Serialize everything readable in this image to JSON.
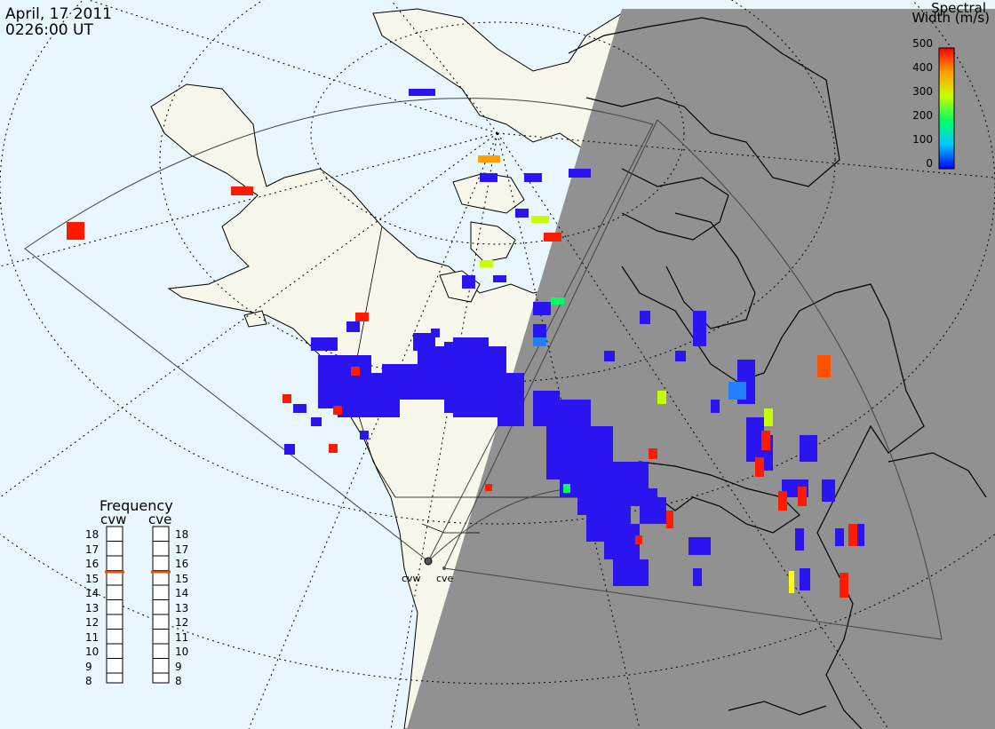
{
  "header": {
    "date": "April, 17 2011",
    "time": "0226:00 UT"
  },
  "legend": {
    "title_line1": "Spectral",
    "title_line2": "Width (m/s)",
    "ticks": [
      "500",
      "400",
      "300",
      "200",
      "100",
      "0"
    ],
    "colormap": [
      "#0000ff",
      "#00c8ff",
      "#00ff64",
      "#c8ff00",
      "#ffa000",
      "#ff0000"
    ]
  },
  "frequency_panel": {
    "title": "Frequency",
    "radars": [
      {
        "name": "cvw",
        "frequency_mhz": 15.5
      },
      {
        "name": "cve",
        "frequency_mhz": 15.5
      }
    ],
    "scale_left": [
      "18",
      "17",
      "16",
      "15",
      "14",
      "13",
      "12",
      "11",
      "10",
      "9",
      "8"
    ],
    "scale_right": [
      "18",
      "17",
      "16",
      "15",
      "14",
      "13",
      "12",
      "11",
      "10",
      "9",
      "8"
    ],
    "marker_color": "#e05010"
  },
  "sites": {
    "cvw_label": "cvw",
    "cve_label": "cve"
  },
  "colors": {
    "ocean": "#e8f6fd",
    "land_day": "#f7f7eb",
    "night": "#919191",
    "scatter_low": "#2a14f0",
    "scatter_high": "#ff1a00"
  }
}
